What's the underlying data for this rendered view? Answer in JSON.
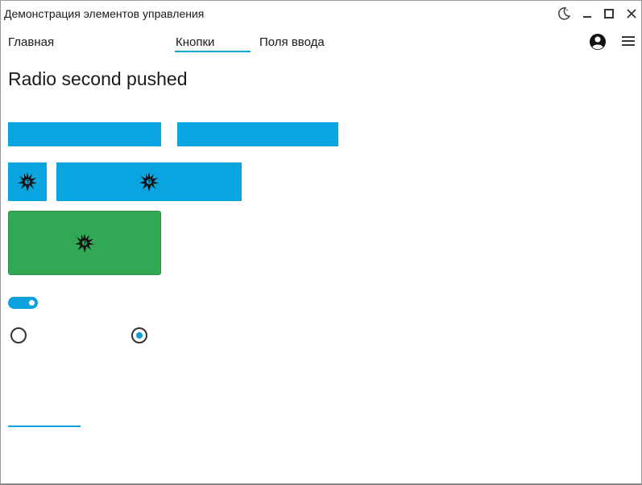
{
  "window": {
    "title": "Демонстрация элементов управления"
  },
  "titlebar_icons": [
    "moon-icon",
    "minimize-icon",
    "maximize-icon",
    "close-icon"
  ],
  "nav": {
    "home_label": "Главная",
    "buttons_label": "Кнопки",
    "inputs_label": "Поля ввода",
    "active_tab": "Кнопки"
  },
  "nav_icons": [
    "user-account-icon",
    "hamburger-menu-icon"
  ],
  "status_text": "Radio second pushed",
  "controls": {
    "toggle_on": true,
    "radio_first_selected": false,
    "radio_second_selected": true
  },
  "colors": {
    "accent": "#0aa1dd",
    "button_blue": "#0aa5e0",
    "button_green": "#31a853"
  }
}
